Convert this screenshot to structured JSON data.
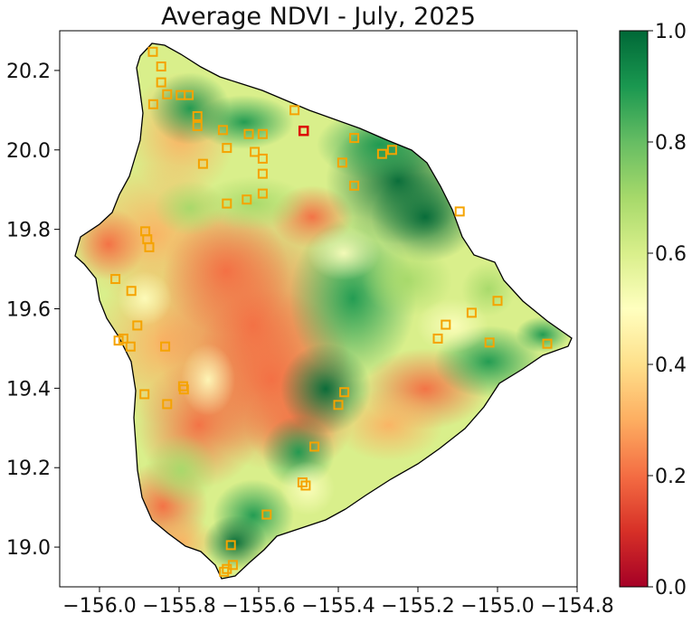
{
  "title": "Average NDVI - July, 2025",
  "map": {
    "x_ticks": [
      {
        "value": -156.0,
        "label": "−156.0"
      },
      {
        "value": -155.8,
        "label": "−155.8"
      },
      {
        "value": -155.6,
        "label": "−155.6"
      },
      {
        "value": -155.4,
        "label": "−155.4"
      },
      {
        "value": -155.2,
        "label": "−155.2"
      },
      {
        "value": -155.0,
        "label": "−155.0"
      },
      {
        "value": -154.8,
        "label": "−154.8"
      }
    ],
    "y_ticks": [
      {
        "value": 20.2,
        "label": "20.2"
      },
      {
        "value": 20.0,
        "label": "20.0"
      },
      {
        "value": 19.8,
        "label": "19.8"
      },
      {
        "value": 19.6,
        "label": "19.6"
      },
      {
        "value": 19.4,
        "label": "19.4"
      },
      {
        "value": 19.2,
        "label": "19.2"
      },
      {
        "value": 19.0,
        "label": "19.0"
      }
    ],
    "xlim": [
      -156.1,
      -154.8
    ],
    "ylim": [
      18.9,
      20.3
    ],
    "colormap": [
      "#a50026",
      "#d73027",
      "#f46d43",
      "#fdae61",
      "#fee08b",
      "#ffffbf",
      "#d9ef8b",
      "#a6d96a",
      "#66bd63",
      "#1a9850",
      "#006837"
    ],
    "station_color": "#f5a300",
    "highlight_color": "#dd0000",
    "stations": [
      [
        -155.866,
        20.247
      ],
      [
        -155.845,
        20.21
      ],
      [
        -155.845,
        20.17
      ],
      [
        -155.83,
        20.14
      ],
      [
        -155.865,
        20.115
      ],
      [
        -155.796,
        20.138
      ],
      [
        -155.776,
        20.138
      ],
      [
        -155.754,
        20.085
      ],
      [
        -155.754,
        20.06
      ],
      [
        -155.69,
        20.05
      ],
      [
        -155.625,
        20.04
      ],
      [
        -155.59,
        20.04
      ],
      [
        -155.51,
        20.1
      ],
      [
        -155.68,
        20.005
      ],
      [
        -155.61,
        19.995
      ],
      [
        -155.59,
        19.978
      ],
      [
        -155.74,
        19.965
      ],
      [
        -155.39,
        19.968
      ],
      [
        -155.36,
        20.03
      ],
      [
        -155.29,
        19.99
      ],
      [
        -155.265,
        20.0
      ],
      [
        -155.36,
        19.91
      ],
      [
        -155.59,
        19.94
      ],
      [
        -155.59,
        19.89
      ],
      [
        -155.63,
        19.875
      ],
      [
        -155.68,
        19.865
      ],
      [
        -155.095,
        19.845
      ],
      [
        -155.885,
        19.795
      ],
      [
        -155.88,
        19.775
      ],
      [
        -155.875,
        19.755
      ],
      [
        -155.96,
        19.675
      ],
      [
        -155.92,
        19.645
      ],
      [
        -155.905,
        19.558
      ],
      [
        -155.952,
        19.52
      ],
      [
        -155.94,
        19.525
      ],
      [
        -155.922,
        19.505
      ],
      [
        -155.835,
        19.505
      ],
      [
        -155.15,
        19.525
      ],
      [
        -155.13,
        19.56
      ],
      [
        -155.065,
        19.59
      ],
      [
        -155.0,
        19.62
      ],
      [
        -155.02,
        19.515
      ],
      [
        -154.875,
        19.512
      ],
      [
        -155.79,
        19.405
      ],
      [
        -155.788,
        19.397
      ],
      [
        -155.887,
        19.385
      ],
      [
        -155.83,
        19.36
      ],
      [
        -155.385,
        19.39
      ],
      [
        -155.4,
        19.358
      ],
      [
        -155.46,
        19.253
      ],
      [
        -155.49,
        19.163
      ],
      [
        -155.482,
        19.155
      ],
      [
        -155.58,
        19.082
      ],
      [
        -155.67,
        19.005
      ],
      [
        -155.665,
        18.955
      ],
      [
        -155.68,
        18.945
      ],
      [
        -155.687,
        18.938
      ]
    ],
    "highlight_station": [
      -155.487,
      20.048
    ]
  },
  "colorbar": {
    "range": [
      0.0,
      1.0
    ],
    "ticks": [
      {
        "value": 0.0,
        "label": "0.0"
      },
      {
        "value": 0.2,
        "label": "0.2"
      },
      {
        "value": 0.4,
        "label": "0.4"
      },
      {
        "value": 0.6,
        "label": "0.6"
      },
      {
        "value": 0.8,
        "label": "0.8"
      },
      {
        "value": 1.0,
        "label": "1.0"
      }
    ]
  }
}
